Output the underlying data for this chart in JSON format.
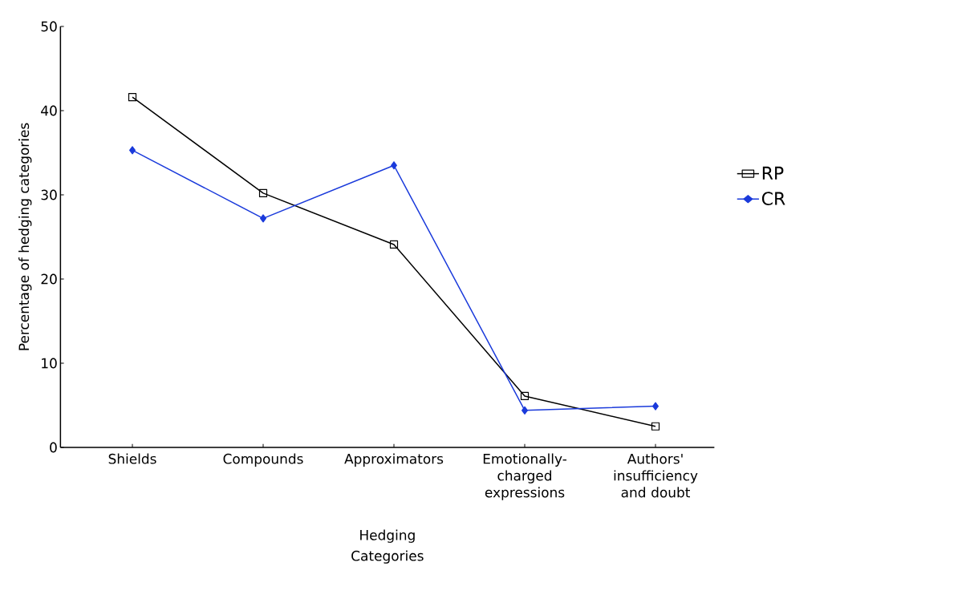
{
  "chart_data": {
    "type": "line",
    "categories": [
      "Shields",
      "Compounds",
      "Approximators",
      "Emotionally-charged expressions",
      "Authors' insufficiency and doubt"
    ],
    "series": [
      {
        "name": "RP",
        "color": "#000000",
        "marker": "square",
        "values": [
          41.6,
          30.2,
          24.1,
          6.1,
          2.5
        ]
      },
      {
        "name": "CR",
        "color": "#1a3adb",
        "marker": "diamond",
        "values": [
          35.3,
          27.2,
          33.5,
          4.4,
          4.9
        ]
      }
    ],
    "xlabel": "Hedging Categories",
    "ylabel": "Percentage of hedging categories",
    "ylim": [
      0,
      50
    ],
    "yticks": [
      0,
      10,
      20,
      30,
      40,
      50
    ],
    "legend": "right",
    "line_style": "solid"
  }
}
